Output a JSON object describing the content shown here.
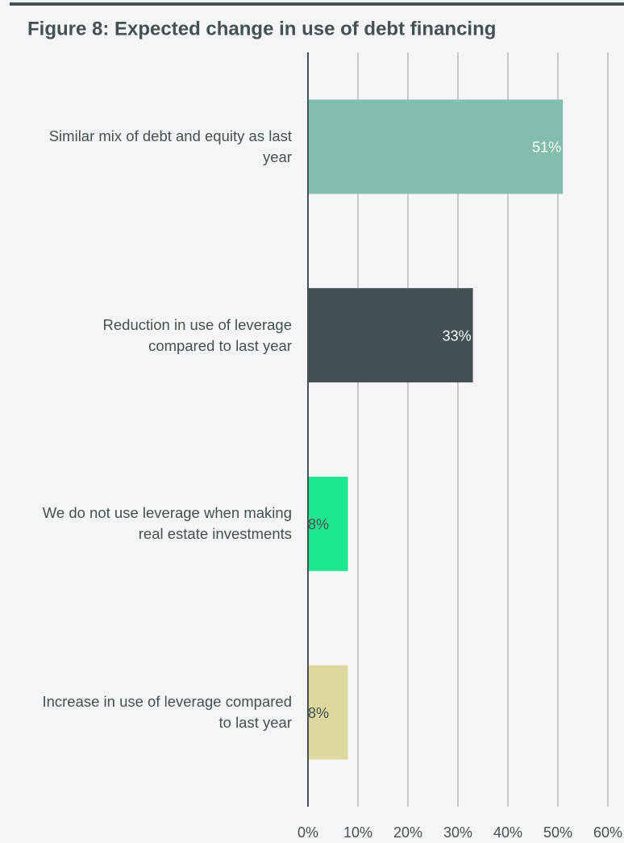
{
  "chart_data": {
    "type": "barh",
    "title": "Figure 8: Expected change in use of debt financing",
    "categories": [
      "Similar mix of debt and equity as last year",
      "Reduction in use of leverage compared to last year",
      "We do not use leverage when making real estate investments",
      "Increase in use of leverage compared to last year"
    ],
    "values": [
      51,
      33,
      8,
      8
    ],
    "value_labels": [
      "51%",
      "33%",
      "8%",
      "8%"
    ],
    "colors": [
      "#82bdae",
      "#435155",
      "#1ee88e",
      "#dcd89f"
    ],
    "value_label_colors": [
      "#ffffff",
      "#ffffff",
      "#435155",
      "#435155"
    ],
    "xlim": [
      0,
      60
    ],
    "xticks": [
      {
        "value": 0,
        "label": "0%"
      },
      {
        "value": 10,
        "label": "10%"
      },
      {
        "value": 20,
        "label": "20%"
      },
      {
        "value": 30,
        "label": "30%"
      },
      {
        "value": 40,
        "label": "40%"
      },
      {
        "value": 50,
        "label": "50%"
      },
      {
        "value": 60,
        "label": "60%"
      }
    ],
    "grid": true
  }
}
